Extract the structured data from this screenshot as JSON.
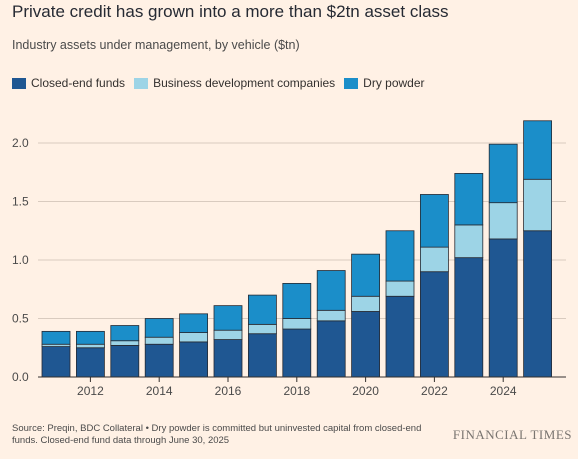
{
  "chart_data": {
    "type": "bar",
    "stacked": true,
    "title": "Private credit has grown into a more than $2tn asset class",
    "subtitle": "Industry assets under management, by vehicle ($tn)",
    "x": [
      2011,
      2012,
      2013,
      2014,
      2015,
      2016,
      2017,
      2018,
      2019,
      2020,
      2021,
      2022,
      2023,
      2024,
      2025
    ],
    "x_tick_labels": [
      "2012",
      "2014",
      "2016",
      "2018",
      "2020",
      "2022",
      "2024"
    ],
    "x_tick_values": [
      2012,
      2014,
      2016,
      2018,
      2020,
      2022,
      2024
    ],
    "series": [
      {
        "name": "Closed-end funds",
        "color": "#1f5792",
        "values": [
          0.26,
          0.25,
          0.27,
          0.28,
          0.3,
          0.32,
          0.37,
          0.41,
          0.48,
          0.56,
          0.69,
          0.9,
          1.02,
          1.18,
          1.25
        ]
      },
      {
        "name": "Business development companies",
        "color": "#9dd4e6",
        "values": [
          0.02,
          0.03,
          0.04,
          0.06,
          0.08,
          0.08,
          0.08,
          0.09,
          0.09,
          0.13,
          0.13,
          0.21,
          0.28,
          0.31,
          0.44
        ]
      },
      {
        "name": "Dry powder",
        "color": "#1b8ec9",
        "values": [
          0.11,
          0.11,
          0.13,
          0.16,
          0.16,
          0.21,
          0.25,
          0.3,
          0.34,
          0.36,
          0.43,
          0.45,
          0.44,
          0.5,
          0.5
        ]
      }
    ],
    "y_ticks": [
      "0.0",
      "0.5",
      "1.0",
      "1.5",
      "2.0"
    ],
    "ylim": [
      0,
      2.25
    ],
    "grid": true,
    "legend": "top-left"
  },
  "source_note": "Source: Preqin, BDC Collateral • Dry powder is committed but uninvested capital from closed-end funds. Closed-end fund data through June 30, 2025",
  "brand": "FINANCIAL TIMES"
}
